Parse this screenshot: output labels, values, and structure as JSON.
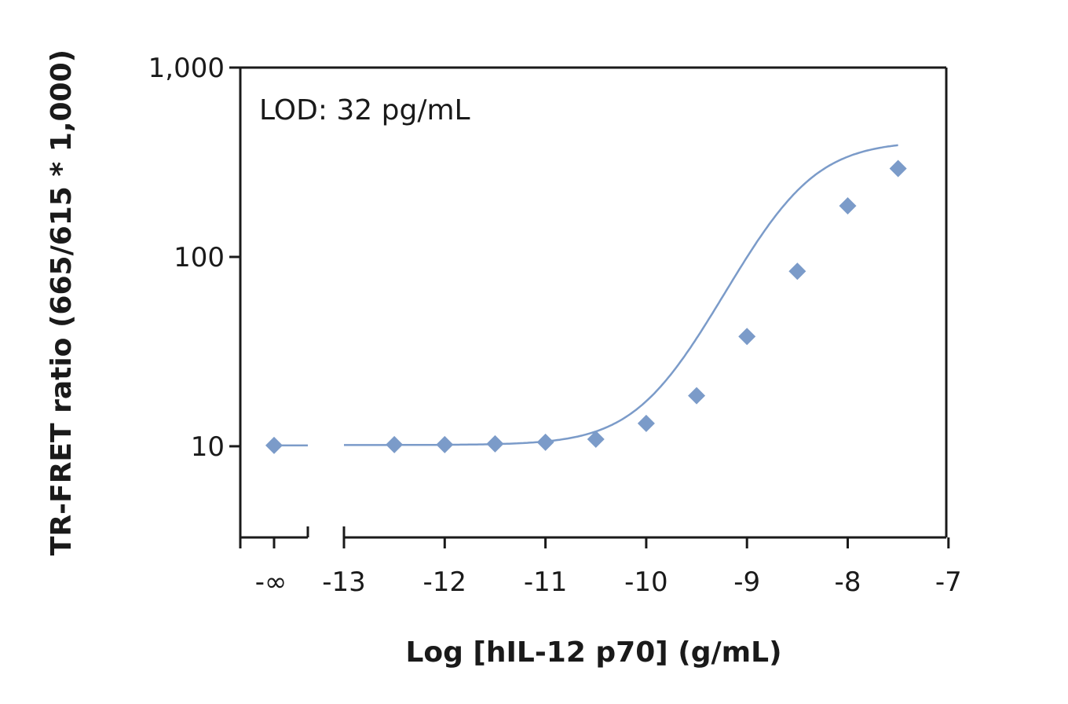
{
  "chart_data": {
    "type": "scatter",
    "title": "",
    "xlabel": "Log [hIL-12 p70] (g/mL)",
    "ylabel": "TR-FRET ratio (665/615 * 1,000)",
    "y_scale": "log",
    "ylim": [
      3.3,
      1000
    ],
    "xlim": [
      -13,
      -7
    ],
    "x_break": true,
    "x_break_label": "-∞",
    "x_ticks": [
      -13,
      -12,
      -11,
      -10,
      -9,
      -8,
      -7
    ],
    "x_tick_labels": [
      "-13",
      "-12",
      "-11",
      "-10",
      "-9",
      "-8",
      "-7"
    ],
    "y_ticks": [
      10,
      100,
      1000
    ],
    "y_tick_labels": [
      "10",
      "100",
      "1,000"
    ],
    "grid": false,
    "legend": "none",
    "marker": "diamond",
    "color": "#7b9bc9",
    "annotation": "LOD: 32 pg/mL",
    "blank_point": {
      "x": "-∞",
      "y": 10.1
    },
    "series": [
      {
        "x": [
          -12.5,
          -12,
          -11.5,
          -11,
          -10.5,
          -10,
          -9.5,
          -9,
          -8.5,
          -8,
          -7.5
        ],
        "y": [
          10.2,
          10.2,
          10.3,
          10.5,
          10.9,
          13.2,
          18.5,
          38,
          84,
          186,
          293
        ]
      }
    ],
    "fit_curve": {
      "bottom": 10.15,
      "top": 410,
      "log_ec50": -8.55,
      "hill": 1.2
    }
  }
}
